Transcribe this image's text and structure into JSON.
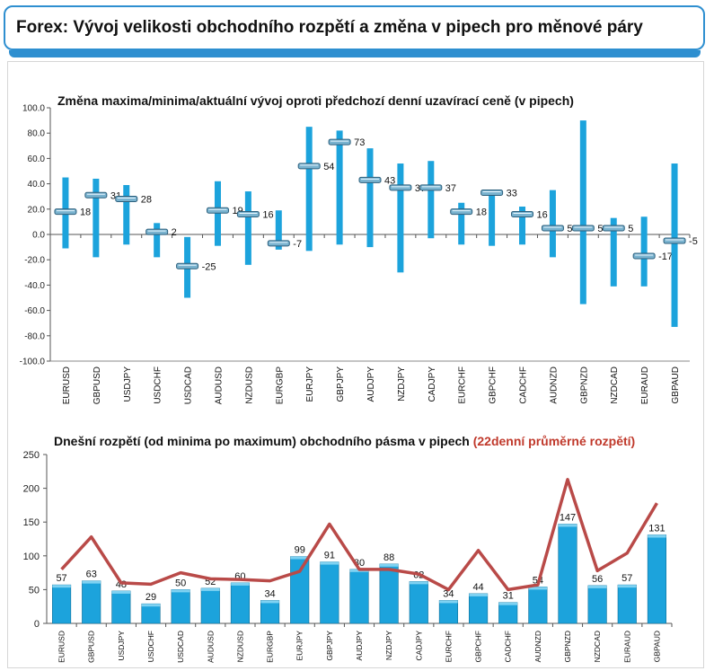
{
  "page": {
    "title": "Forex: Vývoj velikosti obchodního rozpětí a změna v pipech pro měnové páry"
  },
  "colors": {
    "accent_blue": "#2e8fd0",
    "bar_blue": "#1ca3dc",
    "line_red": "#b94a48",
    "red_text": "#c0392b"
  },
  "chart_data": [
    {
      "type": "range",
      "title": "Změna maxima/minima/aktuální vývoj oproti předchozí denní uzavírací ceně (v pipech)",
      "categories": [
        "EURUSD",
        "GBPUSD",
        "USDJPY",
        "USDCHF",
        "USDCAD",
        "AUDUSD",
        "NZDUSD",
        "EURGBP",
        "EURJPY",
        "GBPJPY",
        "AUDJPY",
        "NZDJPY",
        "CADJPY",
        "EURCHF",
        "GBPCHF",
        "CADCHF",
        "AUDNZD",
        "GBPNZD",
        "NZDCAD",
        "EURAUD",
        "GBPAUD"
      ],
      "high": [
        45,
        44,
        39,
        9,
        -2,
        42,
        34,
        19,
        85,
        82,
        68,
        56,
        58,
        25,
        32,
        22,
        35,
        90,
        13,
        14,
        56
      ],
      "low": [
        -11,
        -18,
        -8,
        -18,
        -50,
        -9,
        -24,
        -12,
        -13,
        -8,
        -10,
        -30,
        -3,
        -8,
        -9,
        -8,
        -18,
        -55,
        -41,
        -41,
        -73
      ],
      "current": [
        18,
        31,
        28,
        2,
        -25,
        19,
        16,
        -7,
        54,
        73,
        43,
        37,
        37,
        18,
        33,
        16,
        5,
        5,
        5,
        -17,
        -5
      ],
      "current_labels": [
        "18",
        "31",
        "28",
        "2",
        "-25",
        "19",
        "16",
        "-7",
        "54",
        "73",
        "43",
        "37",
        "37",
        "18",
        "33",
        "16",
        "5",
        "5",
        "5",
        "-17",
        "-5"
      ],
      "y_ticks": [
        "100.0",
        "80.0",
        "60.0",
        "40.0",
        "20.0",
        "0.0",
        "-20.0",
        "-40.0",
        "-60.0",
        "-80.0",
        "-100.0"
      ],
      "ylim": [
        -100,
        100
      ],
      "grid": false
    },
    {
      "type": "bar+line",
      "title_main": "Dnešní rozpětí (od minima po maximum) obchodního pásma v pipech",
      "title_highlight": "(22denní průměrné rozpětí)",
      "categories": [
        "EURUSD",
        "GBPUSD",
        "USDJPY",
        "USDCHF",
        "USDCAD",
        "AUDUSD",
        "NZDUSD",
        "EURGBP",
        "EURJPY",
        "GBPJPY",
        "AUDJPY",
        "NZDJPY",
        "CADJPY",
        "EURCHF",
        "GBPCHF",
        "CADCHF",
        "AUDNZD",
        "GBPNZD",
        "NZDCAD",
        "EURAUD",
        "GBPAUD"
      ],
      "values": [
        57,
        63,
        48,
        29,
        50,
        52,
        60,
        34,
        99,
        91,
        80,
        88,
        62,
        34,
        44,
        31,
        54,
        147,
        56,
        57,
        131
      ],
      "value_labels": [
        "57",
        "63",
        "48",
        "29",
        "50",
        "52",
        "60",
        "34",
        "99",
        "91",
        "80",
        "88",
        "62",
        "34",
        "44",
        "31",
        "54",
        "147",
        "56",
        "57",
        "131"
      ],
      "avg_range": [
        80,
        128,
        60,
        58,
        75,
        66,
        65,
        63,
        77,
        147,
        80,
        80,
        73,
        50,
        108,
        50,
        57,
        213,
        78,
        104,
        178
      ],
      "y_ticks": [
        "250",
        "200",
        "150",
        "100",
        "50",
        "0"
      ],
      "ylim": [
        0,
        250
      ],
      "grid": false
    }
  ]
}
